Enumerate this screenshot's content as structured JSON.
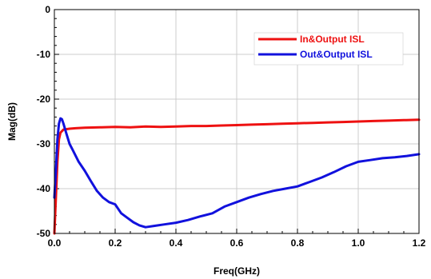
{
  "chart_data": {
    "type": "line",
    "title": "",
    "xlabel": "Freq(GHz)",
    "ylabel": "Mag(dB)",
    "xlim": [
      0.0,
      1.2
    ],
    "ylim": [
      -50,
      0
    ],
    "x_ticks": [
      0.0,
      0.2,
      0.4,
      0.6,
      0.8,
      1.0,
      1.2
    ],
    "x_tick_labels": [
      "0.0",
      "0.2",
      "0.4",
      "0.6",
      "0.8",
      "1.0",
      "1.2"
    ],
    "y_ticks": [
      -50,
      -40,
      -30,
      -20,
      -10,
      0
    ],
    "y_tick_labels": [
      "-50",
      "-40",
      "-30",
      "-20",
      "-10",
      "0"
    ],
    "grid": true,
    "legend_position": "top-right",
    "series": [
      {
        "name": "In&Output ISL",
        "color": "#ee1111",
        "x": [
          0.0,
          0.005,
          0.01,
          0.015,
          0.02,
          0.03,
          0.05,
          0.07,
          0.1,
          0.15,
          0.2,
          0.25,
          0.3,
          0.35,
          0.4,
          0.45,
          0.5,
          0.55,
          0.6,
          0.65,
          0.7,
          0.75,
          0.8,
          0.85,
          0.9,
          0.95,
          1.0,
          1.05,
          1.1,
          1.15,
          1.2
        ],
        "values": [
          -50,
          -42,
          -34,
          -29,
          -27.5,
          -26.8,
          -26.6,
          -26.5,
          -26.4,
          -26.3,
          -26.2,
          -26.3,
          -26.1,
          -26.2,
          -26.1,
          -26.0,
          -26.0,
          -25.9,
          -25.8,
          -25.7,
          -25.6,
          -25.5,
          -25.4,
          -25.3,
          -25.2,
          -25.1,
          -25.0,
          -24.9,
          -24.8,
          -24.7,
          -24.6
        ]
      },
      {
        "name": "Out&Output ISL",
        "color": "#1111dd",
        "x": [
          0.0,
          0.005,
          0.01,
          0.015,
          0.02,
          0.025,
          0.03,
          0.04,
          0.05,
          0.06,
          0.08,
          0.1,
          0.12,
          0.14,
          0.16,
          0.18,
          0.2,
          0.22,
          0.24,
          0.26,
          0.28,
          0.3,
          0.33,
          0.36,
          0.4,
          0.44,
          0.48,
          0.52,
          0.56,
          0.6,
          0.64,
          0.68,
          0.72,
          0.76,
          0.8,
          0.84,
          0.88,
          0.92,
          0.96,
          1.0,
          1.04,
          1.08,
          1.12,
          1.16,
          1.2
        ],
        "values": [
          -42,
          -36,
          -29,
          -25.5,
          -24.3,
          -24.5,
          -25.5,
          -27.8,
          -30.0,
          -31.3,
          -34.0,
          -36.0,
          -38.3,
          -40.5,
          -42.0,
          -43.0,
          -43.5,
          -45.5,
          -46.5,
          -47.5,
          -48.2,
          -48.6,
          -48.3,
          -48.0,
          -47.6,
          -47.0,
          -46.2,
          -45.5,
          -44.0,
          -43.0,
          -42.0,
          -41.2,
          -40.5,
          -40.0,
          -39.5,
          -38.5,
          -37.5,
          -36.3,
          -35.0,
          -34.0,
          -33.6,
          -33.2,
          -33.0,
          -32.7,
          -32.3
        ]
      }
    ]
  }
}
